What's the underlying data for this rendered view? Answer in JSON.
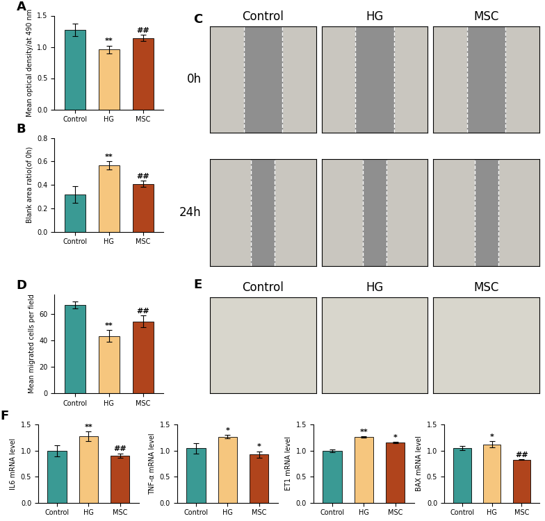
{
  "chart_data": [
    {
      "panel": "A",
      "type": "bar",
      "categories": [
        "Control",
        "HG",
        "MSC"
      ],
      "values": [
        1.27,
        0.96,
        1.14
      ],
      "errors": [
        0.1,
        0.06,
        0.05
      ],
      "significance": [
        null,
        "**",
        "##"
      ],
      "colors": [
        "#3a9a94",
        "#f6c67e",
        "#b0441c"
      ],
      "y_label": "Mean optical density/at 490 nm",
      "ylim": [
        0,
        1.5
      ],
      "yticks": [
        {
          "value": 0,
          "label": "0.0"
        },
        0.5,
        {
          "value": 1,
          "label": "1.0"
        },
        1.5
      ]
    },
    {
      "panel": "B",
      "type": "bar",
      "categories": [
        "Control",
        "HG",
        "MSC"
      ],
      "values": [
        0.32,
        0.565,
        0.41
      ],
      "errors": [
        0.07,
        0.035,
        0.025
      ],
      "significance": [
        null,
        "**",
        "##"
      ],
      "colors": [
        "#3a9a94",
        "#f6c67e",
        "#b0441c"
      ],
      "y_label": "Blank area ratio(of 0h)",
      "ylim": [
        0,
        0.8
      ],
      "yticks": [
        {
          "value": 0,
          "label": "0.0"
        },
        0.2,
        0.4,
        0.6,
        0.8
      ]
    },
    {
      "panel": "D",
      "type": "bar",
      "categories": [
        "Control",
        "HG",
        "MSC"
      ],
      "values": [
        67,
        43.5,
        54.5
      ],
      "errors": [
        2.5,
        4.5,
        4.5
      ],
      "significance": [
        null,
        "**",
        "##"
      ],
      "colors": [
        "#3a9a94",
        "#f6c67e",
        "#b0441c"
      ],
      "y_label": "Mean migrated cells per field",
      "ylim": [
        0,
        75
      ],
      "yticks": [
        0,
        20,
        40,
        60
      ]
    },
    {
      "panel": "F",
      "type": "bar",
      "categories": [
        "Control",
        "HG",
        "MSC"
      ],
      "values": [
        1.0,
        1.28,
        0.91
      ],
      "errors": [
        0.11,
        0.09,
        0.04
      ],
      "significance": [
        null,
        "**",
        "##"
      ],
      "colors": [
        "#3a9a94",
        "#f6c67e",
        "#b0441c"
      ],
      "y_label": "IL6 mRNA level",
      "ylim": [
        0,
        1.5
      ],
      "yticks": [
        {
          "value": 0,
          "label": "0.0"
        },
        0.5,
        {
          "value": 1,
          "label": "1.0"
        },
        1.5
      ]
    },
    {
      "type": "bar",
      "categories": [
        "Control",
        "HG",
        "MSC"
      ],
      "values": [
        1.05,
        1.27,
        0.93
      ],
      "errors": [
        0.1,
        0.03,
        0.06
      ],
      "significance": [
        null,
        "*",
        "*"
      ],
      "colors": [
        "#3a9a94",
        "#f6c67e",
        "#b0441c"
      ],
      "y_label": "TNF-α mRNA level",
      "ylim": [
        0,
        1.5
      ],
      "yticks": [
        {
          "value": 0,
          "label": "0.0"
        },
        0.5,
        {
          "value": 1,
          "label": "1.0"
        },
        1.5
      ]
    },
    {
      "type": "bar",
      "categories": [
        "Control",
        "HG",
        "MSC"
      ],
      "values": [
        1.0,
        1.265,
        1.155
      ],
      "errors": [
        0.03,
        0.01,
        0.01
      ],
      "significance": [
        null,
        "**",
        "*"
      ],
      "colors": [
        "#3a9a94",
        "#f6c67e",
        "#b0441c"
      ],
      "y_label": "ET1 mRNA level",
      "ylim": [
        0,
        1.5
      ],
      "yticks": [
        {
          "value": 0,
          "label": "0.0"
        },
        0.5,
        {
          "value": 1,
          "label": "1.0"
        },
        1.5
      ]
    },
    {
      "type": "bar",
      "categories": [
        "Control",
        "HG",
        "MSC"
      ],
      "values": [
        1.05,
        1.12,
        0.83
      ],
      "errors": [
        0.04,
        0.06,
        0.01
      ],
      "significance": [
        null,
        "*",
        "##"
      ],
      "colors": [
        "#3a9a94",
        "#f6c67e",
        "#b0441c"
      ],
      "y_label": "BAX mRNA level",
      "ylim": [
        0,
        1.5
      ],
      "yticks": [
        {
          "value": 0,
          "label": "0.0"
        },
        0.5,
        {
          "value": 1,
          "label": "1.0"
        },
        1.5
      ]
    }
  ],
  "images": [
    {
      "panel": "C",
      "columns": [
        "Control",
        "HG",
        "MSC"
      ],
      "rows": [
        "0h",
        "24h"
      ]
    },
    {
      "panel": "E",
      "columns": [
        "Control",
        "HG",
        "MSC"
      ]
    }
  ]
}
